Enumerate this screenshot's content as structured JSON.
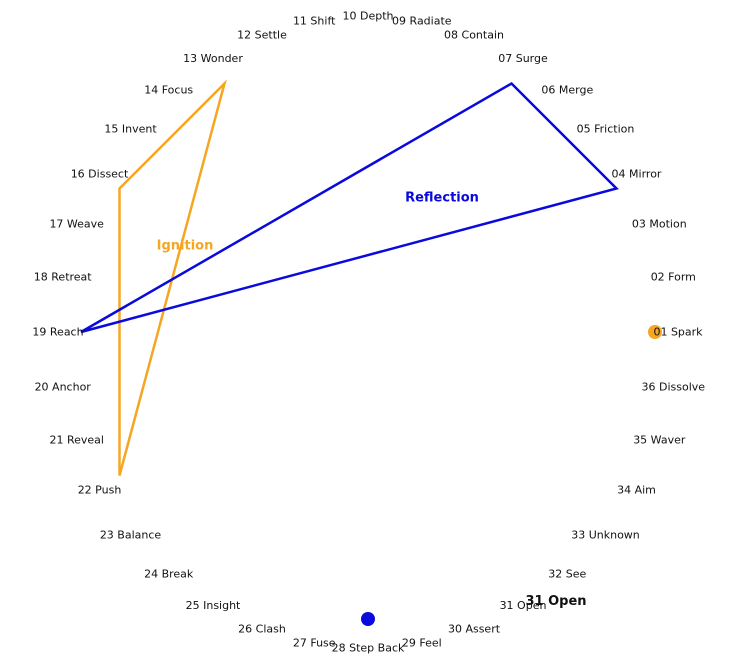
{
  "nodes": [
    {
      "id": "01",
      "label": "01 Spark"
    },
    {
      "id": "02",
      "label": "02 Form"
    },
    {
      "id": "03",
      "label": "03 Motion"
    },
    {
      "id": "04",
      "label": "04 Mirror"
    },
    {
      "id": "05",
      "label": "05 Friction"
    },
    {
      "id": "06",
      "label": "06 Merge"
    },
    {
      "id": "07",
      "label": "07 Surge"
    },
    {
      "id": "08",
      "label": "08 Contain"
    },
    {
      "id": "09",
      "label": "09 Radiate"
    },
    {
      "id": "10",
      "label": "10 Depth"
    },
    {
      "id": "11",
      "label": "11 Shift"
    },
    {
      "id": "12",
      "label": "12 Settle"
    },
    {
      "id": "13",
      "label": "13 Wonder"
    },
    {
      "id": "14",
      "label": "14 Focus"
    },
    {
      "id": "15",
      "label": "15 Invent"
    },
    {
      "id": "16",
      "label": "16 Dissect"
    },
    {
      "id": "17",
      "label": "17 Weave"
    },
    {
      "id": "18",
      "label": "18 Retreat"
    },
    {
      "id": "19",
      "label": "19 Reach"
    },
    {
      "id": "20",
      "label": "20 Anchor"
    },
    {
      "id": "21",
      "label": "21 Reveal"
    },
    {
      "id": "22",
      "label": "22 Push"
    },
    {
      "id": "23",
      "label": "23 Balance"
    },
    {
      "id": "24",
      "label": "24 Break"
    },
    {
      "id": "25",
      "label": "25 Insight"
    },
    {
      "id": "26",
      "label": "26 Clash"
    },
    {
      "id": "27",
      "label": "27 Fuse"
    },
    {
      "id": "28",
      "label": "28 Step Back"
    },
    {
      "id": "29",
      "label": "29 Feel"
    },
    {
      "id": "30",
      "label": "30 Assert"
    },
    {
      "id": "31",
      "label": "31 Open"
    },
    {
      "id": "32",
      "label": "32 See"
    },
    {
      "id": "33",
      "label": "33 Unknown"
    },
    {
      "id": "34",
      "label": "34 Aim"
    },
    {
      "id": "35",
      "label": "35 Waver"
    },
    {
      "id": "36",
      "label": "36 Dissolve"
    }
  ],
  "highlight_label": "31 Open",
  "shapes": [
    {
      "name": "Ignition",
      "color": "#f5a623",
      "vertices": [
        "13",
        "16",
        "22"
      ]
    },
    {
      "name": "Reflection",
      "color": "#0a0adc",
      "vertices": [
        "07",
        "04",
        "19"
      ]
    }
  ],
  "markers": [
    {
      "node": "01",
      "color": "#f5a623"
    },
    {
      "node": "28",
      "color": "#0a0adc"
    }
  ]
}
